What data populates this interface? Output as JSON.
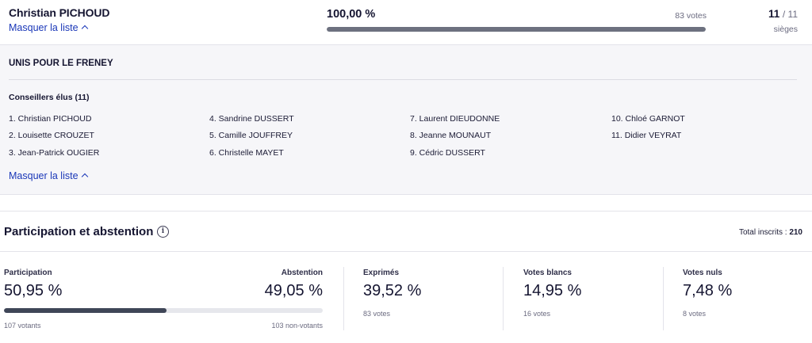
{
  "candidate": {
    "name": "Christian PICHOUD",
    "hide_list_label": "Masquer la liste",
    "percent_label": "100,00 %",
    "percent_value": 100,
    "votes_label": "83 votes",
    "seats_won": "11",
    "seats_total": "/ 11",
    "seats_label": "sièges",
    "bar_color": "#6d717f"
  },
  "list": {
    "title": "UNIS POUR LE FRENEY",
    "elected_heading": "Conseillers élus (11)",
    "hide_list_label": "Masquer la liste",
    "columns": [
      [
        "1. Christian PICHOUD",
        "2. Louisette CROUZET",
        "3. Jean-Patrick OUGIER"
      ],
      [
        "4. Sandrine DUSSERT",
        "5. Camille JOUFFREY",
        "6. Christelle MAYET"
      ],
      [
        "7. Laurent DIEUDONNE",
        "8. Jeanne MOUNAUT",
        "9. Cédric DUSSERT"
      ],
      [
        "10. Chloé GARNOT",
        "11. Didier VEYRAT"
      ]
    ]
  },
  "participation": {
    "title": "Participation et abstention",
    "info_icon": "info-icon",
    "total_label": "Total inscrits : ",
    "total_value": "210",
    "participation_label": "Participation",
    "participation_value": "50,95 %",
    "participation_fraction": 0.5095,
    "abstention_label": "Abstention",
    "abstention_value": "49,05 %",
    "voters_label": "107 votants",
    "non_voters_label": "103 non-votants",
    "bar_color": "#3f4657",
    "stats": [
      {
        "label": "Exprimés",
        "value": "39,52 %",
        "sub": "83 votes"
      },
      {
        "label": "Votes blancs",
        "value": "14,95 %",
        "sub": "16 votes"
      },
      {
        "label": "Votes nuls",
        "value": "7,48 %",
        "sub": "8 votes"
      }
    ]
  }
}
